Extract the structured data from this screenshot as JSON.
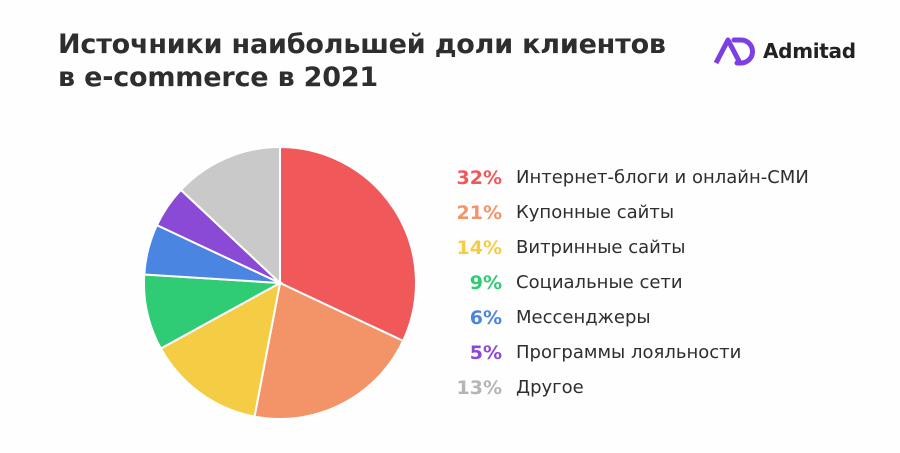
{
  "title_line1": "Источники наибольшей доли клиентов",
  "title_line2": "в e-commerce в 2021",
  "logo_text": "Admitad",
  "logo_icon": "admitad-logo-icon",
  "chart_data": {
    "type": "pie",
    "title": "Источники наибольшей доли клиентов в e-commerce в 2021",
    "slices": [
      {
        "label": "Интернет-блоги и онлайн-СМИ",
        "value": 32,
        "value_label": "32%",
        "color": "#f0585a"
      },
      {
        "label": "Купонные сайты",
        "value": 21,
        "value_label": "21%",
        "color": "#f39468"
      },
      {
        "label": "Витринные сайты",
        "value": 14,
        "value_label": "14%",
        "color": "#f5cd45"
      },
      {
        "label": "Социальные сети",
        "value": 9,
        "value_label": "9%",
        "color": "#2fcb75"
      },
      {
        "label": "Мессенджеры",
        "value": 6,
        "value_label": "6%",
        "color": "#4b85e2"
      },
      {
        "label": "Программы лояльности",
        "value": 5,
        "value_label": "5%",
        "color": "#8a4ad6"
      },
      {
        "label": "Другое",
        "value": 13,
        "value_label": "13%",
        "color": "#c9c9c9"
      }
    ],
    "legend_position": "right"
  }
}
